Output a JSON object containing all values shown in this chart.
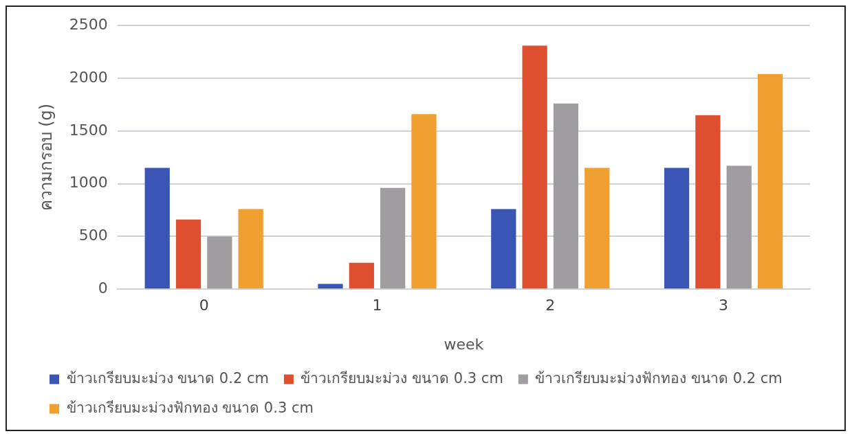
{
  "chart_data": {
    "type": "bar",
    "xlabel": "week",
    "ylabel": "ความกรอบ (g)",
    "categories": [
      "0",
      "1",
      "2",
      "3"
    ],
    "series": [
      {
        "name": "ข้าวเกรียบมะม่วง ขนาด 0.2 cm",
        "color": "#3a55b4",
        "values": [
          1150,
          50,
          760,
          1150
        ]
      },
      {
        "name": "ข้าวเกรียบมะม่วง ขนาด 0.3 cm",
        "color": "#dd4f2f",
        "values": [
          660,
          250,
          2310,
          1650
        ]
      },
      {
        "name": "ข้าวเกรียบมะม่วงฟักทอง ขนาด 0.2 cm",
        "color": "#a09da0",
        "values": [
          500,
          960,
          1760,
          1170
        ]
      },
      {
        "name": "ข้าวเกรียบมะม่วงฟักทอง ขนาด 0.3 cm",
        "color": "#f0a030",
        "values": [
          760,
          1660,
          1150,
          2040
        ]
      }
    ],
    "ylim": [
      0,
      2500
    ],
    "yticks": [
      0,
      500,
      1000,
      1500,
      2000,
      2500
    ],
    "grid": "y",
    "legend": "bottom"
  }
}
